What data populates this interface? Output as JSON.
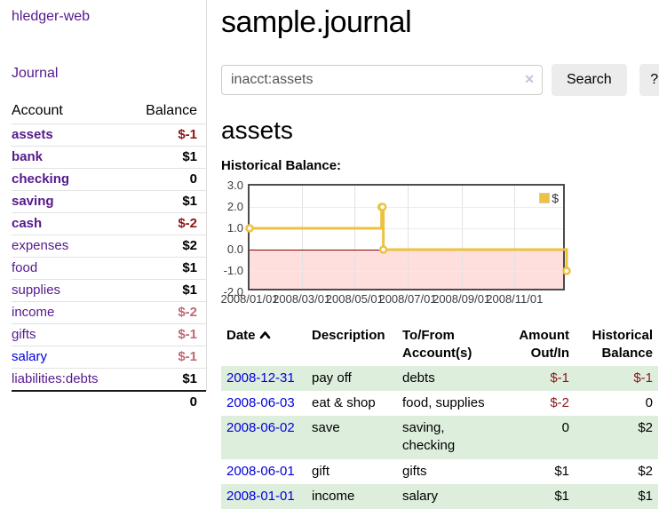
{
  "sidebar": {
    "app_title": "hledger-web",
    "journal_label": "Journal",
    "accounts": {
      "header_account": "Account",
      "header_balance": "Balance",
      "rows": [
        {
          "name": "assets",
          "depth": 1,
          "in_query": true,
          "balance": "$-1"
        },
        {
          "name": "bank",
          "depth": 2,
          "in_query": true,
          "balance": "$1"
        },
        {
          "name": "checking",
          "depth": 3,
          "in_query": true,
          "balance": "0"
        },
        {
          "name": "saving",
          "depth": 3,
          "in_query": true,
          "balance": "$1"
        },
        {
          "name": "cash",
          "depth": 2,
          "in_query": true,
          "balance": "$-2"
        },
        {
          "name": "expenses",
          "depth": 1,
          "in_query": false,
          "balance": "$2"
        },
        {
          "name": "food",
          "depth": 2,
          "in_query": false,
          "balance": "$1"
        },
        {
          "name": "supplies",
          "depth": 2,
          "in_query": false,
          "balance": "$1"
        },
        {
          "name": "income",
          "depth": 1,
          "in_query": false,
          "balance": "$-2"
        },
        {
          "name": "gifts",
          "depth": 2,
          "in_query": false,
          "balance": "$-1"
        },
        {
          "name": "salary",
          "depth": 2,
          "in_query": false,
          "balance": "$-1"
        },
        {
          "name": "liabilities:debts",
          "depth": 1,
          "in_query": false,
          "balance": "$1"
        }
      ],
      "total": "0"
    }
  },
  "header": {
    "title": "sample.journal"
  },
  "search": {
    "value": "inacct:assets",
    "clear_icon": "✕",
    "button_label": "Search",
    "help_label": "?"
  },
  "main": {
    "account_heading": "assets",
    "chart_label": "Historical Balance:"
  },
  "chart_data": {
    "type": "line",
    "title": "Historical Balance",
    "x_range": [
      "2008-01-01",
      "2008-12-31"
    ],
    "y_range": [
      -2,
      3
    ],
    "step": true,
    "grid": true,
    "legend_position": "top-right",
    "x_ticks": [
      {
        "label": "2008/01/01",
        "date": "2008-01-01"
      },
      {
        "label": "2008/03/01",
        "date": "2008-03-01"
      },
      {
        "label": "2008/05/01",
        "date": "2008-05-01"
      },
      {
        "label": "2008/07/01",
        "date": "2008-07-01"
      },
      {
        "label": "2008/09/01",
        "date": "2008-09-01"
      },
      {
        "label": "2008/11/01",
        "date": "2008-11-01"
      }
    ],
    "y_ticks": [
      {
        "label": "3.0",
        "value": 3
      },
      {
        "label": "2.0",
        "value": 2
      },
      {
        "label": "1.0",
        "value": 1
      },
      {
        "label": "0.0",
        "value": 0
      },
      {
        "label": "-1.0",
        "value": -1
      },
      {
        "label": "-2.0",
        "value": -2
      }
    ],
    "series": [
      {
        "name": "$",
        "color": "#edc240",
        "points": [
          [
            "2008-01-01",
            1
          ],
          [
            "2008-06-01",
            2
          ],
          [
            "2008-06-02",
            2
          ],
          [
            "2008-06-03",
            0
          ],
          [
            "2008-12-31",
            -1
          ]
        ]
      }
    ],
    "negative_fill": "#fadede",
    "zero_line_color": "#8b0000"
  },
  "register_table": {
    "headers": {
      "date": "Date",
      "description": "Description",
      "accounts": "To/From Account(s)",
      "amount": "Amount Out/In",
      "balance": "Historical Balance"
    },
    "rows": [
      {
        "date": "2008-12-31",
        "description": "pay off",
        "accounts": "debts",
        "amount": "$-1",
        "balance": "$-1"
      },
      {
        "date": "2008-06-03",
        "description": "eat & shop",
        "accounts": "food, supplies",
        "amount": "$-2",
        "balance": "0"
      },
      {
        "date": "2008-06-02",
        "description": "save",
        "accounts": "saving, checking",
        "amount": "0",
        "balance": "$2"
      },
      {
        "date": "2008-06-01",
        "description": "gift",
        "accounts": "gifts",
        "amount": "$1",
        "balance": "$2"
      },
      {
        "date": "2008-01-01",
        "description": "income",
        "accounts": "salary",
        "amount": "$1",
        "balance": "$1"
      }
    ]
  },
  "colors": {
    "link_purple": "#551a8b",
    "link_blue": "#0000dd",
    "negative_dark": "#8c1515",
    "negative_light": "#bd6a72",
    "stripe_green": "#ddeedd",
    "chart_line": "#edc240"
  }
}
